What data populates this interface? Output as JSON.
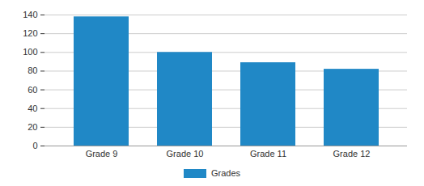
{
  "chart_data": {
    "type": "bar",
    "categories": [
      "Grade 9",
      "Grade 10",
      "Grade 11",
      "Grade 12"
    ],
    "series": [
      {
        "name": "Grades",
        "color": "#2088c6",
        "values": [
          138,
          100,
          89,
          82
        ]
      }
    ],
    "ylim": [
      0,
      140
    ],
    "yticks": [
      0,
      20,
      40,
      60,
      80,
      100,
      120,
      140
    ],
    "grid": true,
    "legend": "bottom"
  }
}
